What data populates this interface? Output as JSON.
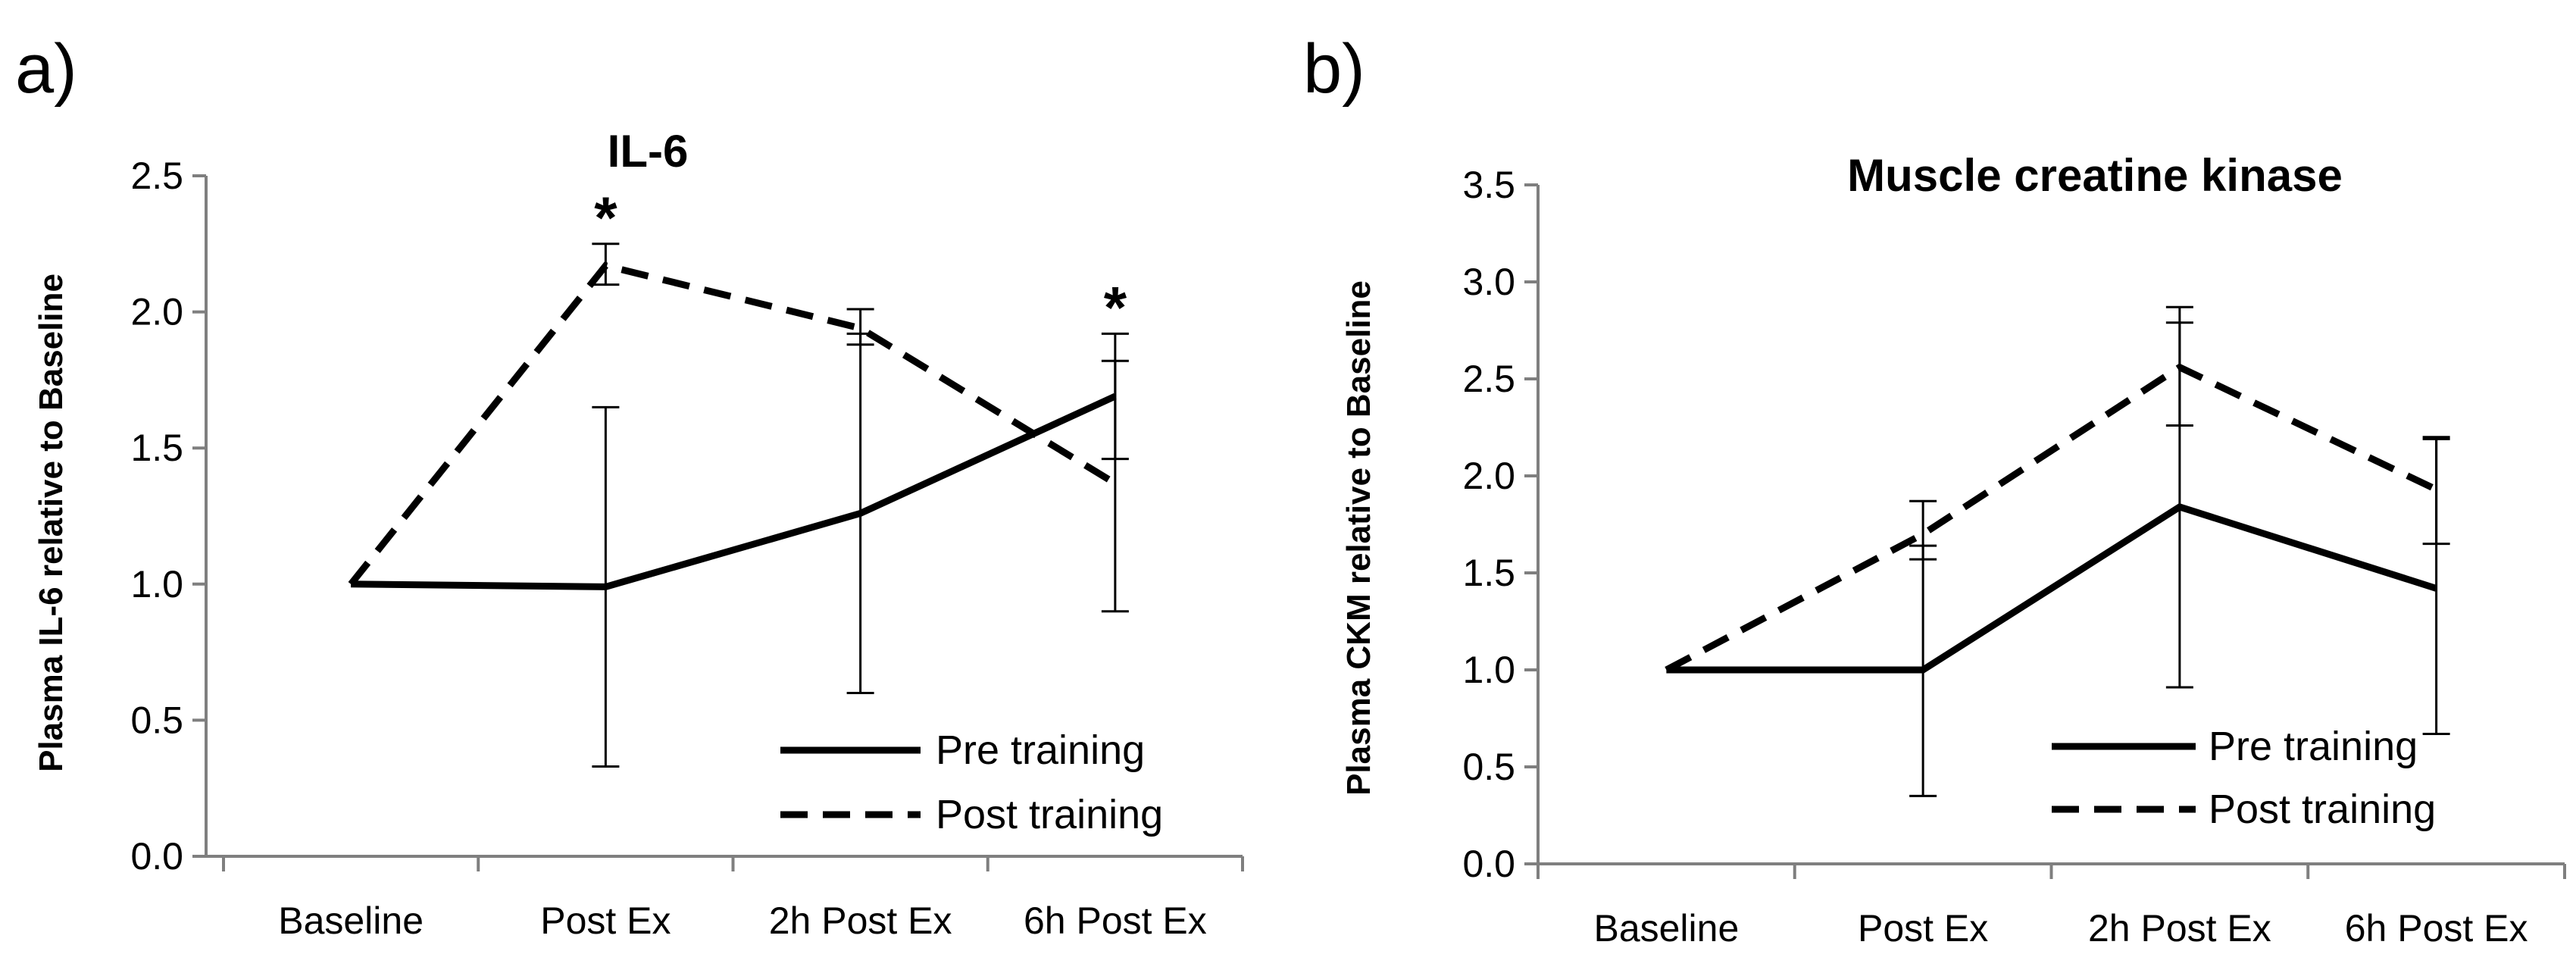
{
  "chart_data": [
    {
      "id": "a",
      "panel_label": "a)",
      "type": "line",
      "title": "IL-6",
      "ylabel": "Plasma IL-6 relative to Baseline",
      "xlabel": "",
      "categories": [
        "Baseline",
        "Post Ex",
        "2h Post Ex",
        "6h Post Ex"
      ],
      "ylim": [
        0,
        2.5
      ],
      "yticks": [
        "0.0",
        "0.5",
        "1.0",
        "1.5",
        "2.0",
        "2.5"
      ],
      "series": [
        {
          "name": "Pre training",
          "style": "solid",
          "values": [
            1.0,
            0.99,
            1.26,
            1.69
          ],
          "err_low": [
            null,
            0.33,
            0.6,
            0.9
          ],
          "err_high": [
            null,
            1.65,
            1.92,
            1.92
          ]
        },
        {
          "name": "Post training",
          "style": "dashed",
          "values": [
            1.0,
            2.17,
            1.94,
            1.37
          ],
          "err_low": [
            null,
            2.1,
            1.88,
            1.46
          ],
          "err_high": [
            null,
            2.25,
            2.01,
            1.82
          ]
        }
      ],
      "annotations": [
        {
          "text": "*",
          "category": "Post Ex"
        },
        {
          "text": "*",
          "category": "6h Post Ex"
        }
      ],
      "legend_position": "bottom-right"
    },
    {
      "id": "b",
      "panel_label": "b)",
      "type": "line",
      "title": "Muscle creatine kinase",
      "ylabel": "Plasma CKM relative to Baseline",
      "xlabel": "",
      "categories": [
        "Baseline",
        "Post Ex",
        "2h Post Ex",
        "6h Post Ex"
      ],
      "ylim": [
        0,
        3.5
      ],
      "yticks": [
        "0.0",
        "0.5",
        "1.0",
        "1.5",
        "2.0",
        "2.5",
        "3.0",
        "3.5"
      ],
      "series": [
        {
          "name": "Pre training",
          "style": "solid",
          "values": [
            1.0,
            1.0,
            1.84,
            1.42
          ],
          "err_low": [
            null,
            0.35,
            0.91,
            0.67
          ],
          "err_high": [
            null,
            1.64,
            2.79,
            2.2
          ]
        },
        {
          "name": "Post training",
          "style": "dashed",
          "values": [
            1.0,
            1.7,
            2.56,
            1.93
          ],
          "err_low": [
            null,
            1.57,
            2.26,
            1.65
          ],
          "err_high": [
            null,
            1.87,
            2.87,
            2.19
          ]
        }
      ],
      "annotations": [],
      "legend_position": "bottom-right"
    }
  ]
}
